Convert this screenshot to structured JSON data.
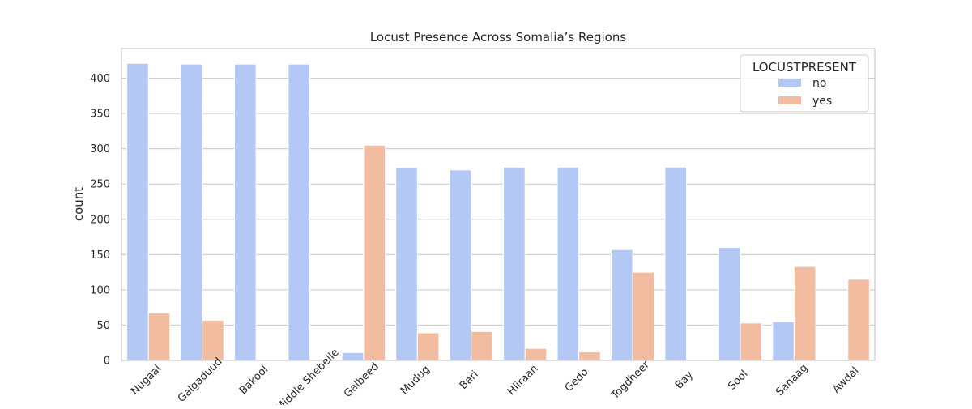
{
  "chart_data": {
    "type": "bar",
    "title": "Locust Presence Across Somalia’s Regions",
    "xlabel": "",
    "ylabel": "count",
    "categories": [
      "Nugaal",
      "Galgaduud",
      "Bakool",
      "Middle Shebelle",
      "Galbeed",
      "Mudug",
      "Bari",
      "Hiiraan",
      "Gedo",
      "Togdheer",
      "Bay",
      "Sool",
      "Sanaag",
      "Awdal"
    ],
    "series": [
      {
        "name": "no",
        "color": "#b3c8f5",
        "values": [
          421,
          420,
          420,
          420,
          11,
          273,
          270,
          274,
          274,
          157,
          274,
          160,
          55,
          0
        ]
      },
      {
        "name": "yes",
        "color": "#f2bca0",
        "values": [
          67,
          57,
          0,
          0,
          305,
          39,
          41,
          17,
          12,
          125,
          0,
          53,
          133,
          115
        ]
      }
    ],
    "ylim": [
      0,
      442
    ],
    "yticks": [
      0,
      50,
      100,
      150,
      200,
      250,
      300,
      350,
      400
    ],
    "grid": true,
    "legend": {
      "title": "LOCUSTPRESENT",
      "placement": "top-right"
    },
    "xtick_rotation": 45
  }
}
